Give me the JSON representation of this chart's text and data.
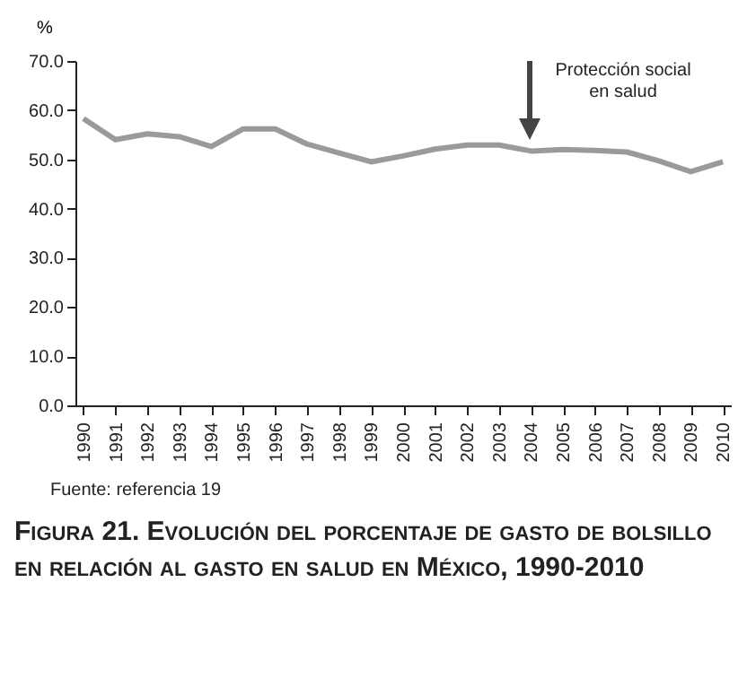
{
  "chart_data": {
    "type": "line",
    "title": "Figura 21. Evolución del porcentaje de gasto de bolsillo en relación al gasto en salud en México, 1990-2010",
    "ylabel": "%",
    "categories": [
      "1990",
      "1991",
      "1992",
      "1993",
      "1994",
      "1995",
      "1996",
      "1997",
      "1998",
      "1999",
      "2000",
      "2001",
      "2002",
      "2003",
      "2004",
      "2005",
      "2006",
      "2007",
      "2008",
      "2009",
      "2010"
    ],
    "series": [
      {
        "color": "#9a9a9a",
        "values": [
          58.3,
          54.0,
          55.2,
          54.6,
          52.6,
          56.2,
          56.2,
          53.1,
          51.3,
          49.5,
          50.7,
          52.1,
          52.9,
          52.9,
          51.7,
          52.0,
          51.8,
          51.5,
          49.7,
          47.5,
          49.5
        ]
      }
    ],
    "ylim": [
      0,
      70
    ],
    "yticks": [
      {
        "value": 0,
        "label": "0.0"
      },
      {
        "value": 10,
        "label": "10.0"
      },
      {
        "value": 20,
        "label": "20.0"
      },
      {
        "value": 30,
        "label": "30.0"
      },
      {
        "value": 40,
        "label": "40.0"
      },
      {
        "value": 50,
        "label": "50.0"
      },
      {
        "value": 60,
        "label": "60.0"
      },
      {
        "value": 70,
        "label": "70.0"
      }
    ],
    "grid": false,
    "marker": "none",
    "line_style": "solid",
    "annotations": [
      "Protección social\nen salud",
      "Fuente: referencia 19"
    ]
  }
}
